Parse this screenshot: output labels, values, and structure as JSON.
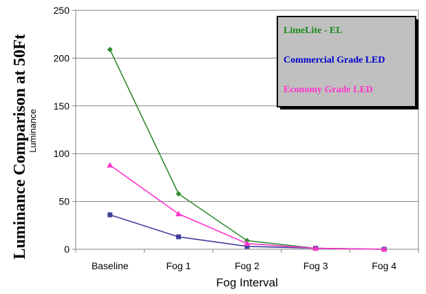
{
  "chart_data": {
    "type": "line",
    "title": "Luminance Comparison at 50Ft",
    "xlabel": "Fog Interval",
    "ylabel": "Luminance",
    "categories": [
      "Baseline",
      "Fog 1",
      "Fog 2",
      "Fog 3",
      "Fog 4"
    ],
    "ylim": [
      0,
      250
    ],
    "yticks": [
      0,
      50,
      100,
      150,
      200,
      250
    ],
    "grid": true,
    "legend_position": "top-right",
    "series": [
      {
        "name": "LimeLite - EL",
        "color": "#2e8b2e",
        "marker": "diamond",
        "values": [
          209,
          58,
          9,
          1,
          0
        ]
      },
      {
        "name": "Commercial  Grade LED",
        "color": "#3f3f99",
        "marker": "square",
        "values": [
          36,
          13,
          3,
          1,
          0
        ]
      },
      {
        "name": "Economy Grade LED",
        "color": "#ff33cc",
        "marker": "triangle",
        "values": [
          88,
          37,
          6,
          1,
          0
        ]
      }
    ],
    "legend_text_colors": [
      "#1a8a1a",
      "#0000cc",
      "#ff33cc"
    ]
  }
}
